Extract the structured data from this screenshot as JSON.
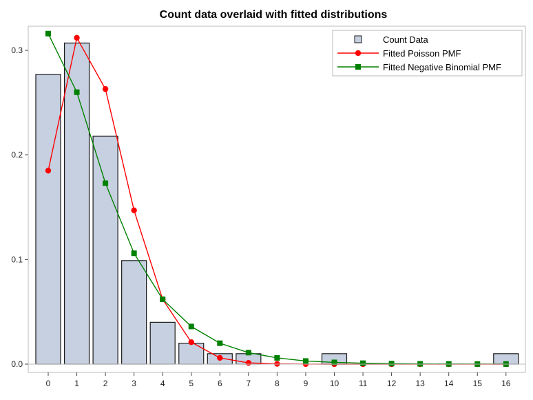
{
  "chart_data": {
    "type": "bar",
    "title": "Count data overlaid with fitted distributions",
    "xlabel": "",
    "ylabel": "",
    "categories": [
      "0",
      "1",
      "2",
      "3",
      "4",
      "5",
      "6",
      "7",
      "8",
      "9",
      "10",
      "11",
      "12",
      "13",
      "14",
      "15",
      "16"
    ],
    "ylim": [
      0,
      0.33
    ],
    "y_ticks": [
      "0.0",
      "0.1",
      "0.2",
      "0.3"
    ],
    "y_tick_values": [
      0.0,
      0.1,
      0.2,
      0.3
    ],
    "grid": false,
    "legend_position": "top-right",
    "series": [
      {
        "name": "Count Data",
        "kind": "bar",
        "color": "#c6d0e0",
        "edge_color": "#1a1a1a",
        "values": [
          0.277,
          0.307,
          0.218,
          0.099,
          0.04,
          0.02,
          0.01,
          0.01,
          0.0,
          0.0,
          0.01,
          0.0,
          0.0,
          0.0,
          0.0,
          0.0,
          0.01
        ]
      },
      {
        "name": "Fitted Poisson PMF",
        "kind": "line",
        "marker": "circle",
        "color": "#ff0000",
        "values": [
          0.185,
          0.312,
          0.263,
          0.147,
          0.062,
          0.021,
          0.006,
          0.0012,
          0.0003,
          5e-05,
          0.0,
          0.0,
          0.0,
          0.0,
          0.0,
          0.0,
          0.0
        ]
      },
      {
        "name": "Fitted Negative Binomial PMF",
        "kind": "line",
        "marker": "square",
        "color": "#008000",
        "values": [
          0.316,
          0.26,
          0.173,
          0.106,
          0.062,
          0.036,
          0.02,
          0.011,
          0.006,
          0.003,
          0.0017,
          0.0009,
          0.0005,
          0.0003,
          0.0002,
          0.0001,
          0.0001
        ]
      }
    ]
  }
}
